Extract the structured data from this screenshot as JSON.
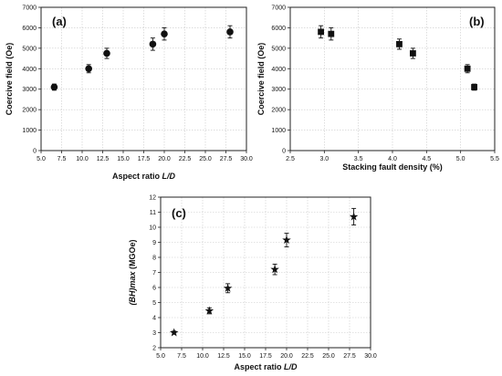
{
  "chart_data": [
    {
      "type": "scatter",
      "panel_label": "(a)",
      "xlabel": "Aspect  ratio L/D",
      "ylabel": "Coercive  field  (Oe)",
      "xlim": [
        5.0,
        30.0
      ],
      "ylim": [
        0,
        7000
      ],
      "x_ticks": [
        "5.0",
        "7.5",
        "10.0",
        "12.5",
        "15.0",
        "17.5",
        "20.0",
        "22.5",
        "25.0",
        "27.5",
        "30.0"
      ],
      "y_ticks": [
        "0",
        "1000",
        "2000",
        "3000",
        "4000",
        "5000",
        "6000",
        "7000"
      ],
      "marker": "circle",
      "grid": true,
      "x": [
        6.6,
        10.8,
        13.0,
        18.6,
        20.0,
        28.0
      ],
      "y": [
        3100,
        4000,
        4750,
        5200,
        5700,
        5800
      ],
      "error": [
        150,
        200,
        250,
        300,
        300,
        300
      ]
    },
    {
      "type": "scatter",
      "panel_label": "(b)",
      "xlabel": "Stacking fault density (%)",
      "ylabel": "Coercive field (Oe)",
      "xlim": [
        2.5,
        5.5
      ],
      "ylim": [
        0,
        7000
      ],
      "x_ticks": [
        "2.5",
        "3.0",
        "3.5",
        "4.0",
        "4.5",
        "5.0",
        "5.5"
      ],
      "y_ticks": [
        "0",
        "1000",
        "2000",
        "3000",
        "4000",
        "5000",
        "6000",
        "7000"
      ],
      "marker": "square",
      "grid": true,
      "x": [
        2.95,
        3.1,
        4.1,
        4.3,
        5.1,
        5.2
      ],
      "y": [
        5800,
        5700,
        5200,
        4750,
        4000,
        3100
      ],
      "error": [
        300,
        300,
        250,
        250,
        200,
        150
      ]
    },
    {
      "type": "scatter",
      "panel_label": "(c)",
      "xlabel": "Aspect  ratio L/D",
      "ylabel": "(BH)max  (MGOe)",
      "xlim": [
        5.0,
        30.0
      ],
      "ylim": [
        2,
        12
      ],
      "x_ticks": [
        "5.0",
        "7.5",
        "10.0",
        "12.5",
        "15.0",
        "17.5",
        "20.0",
        "22.5",
        "25.0",
        "27.5",
        "30.0"
      ],
      "y_ticks": [
        "2",
        "3",
        "4",
        "5",
        "6",
        "7",
        "8",
        "9",
        "10",
        "11",
        "12"
      ],
      "marker": "star",
      "grid": true,
      "x": [
        6.6,
        10.8,
        13.0,
        18.6,
        20.0,
        28.0
      ],
      "y": [
        3.0,
        4.45,
        5.95,
        7.2,
        9.15,
        10.7
      ],
      "error": [
        0.1,
        0.2,
        0.3,
        0.35,
        0.45,
        0.55
      ]
    }
  ]
}
